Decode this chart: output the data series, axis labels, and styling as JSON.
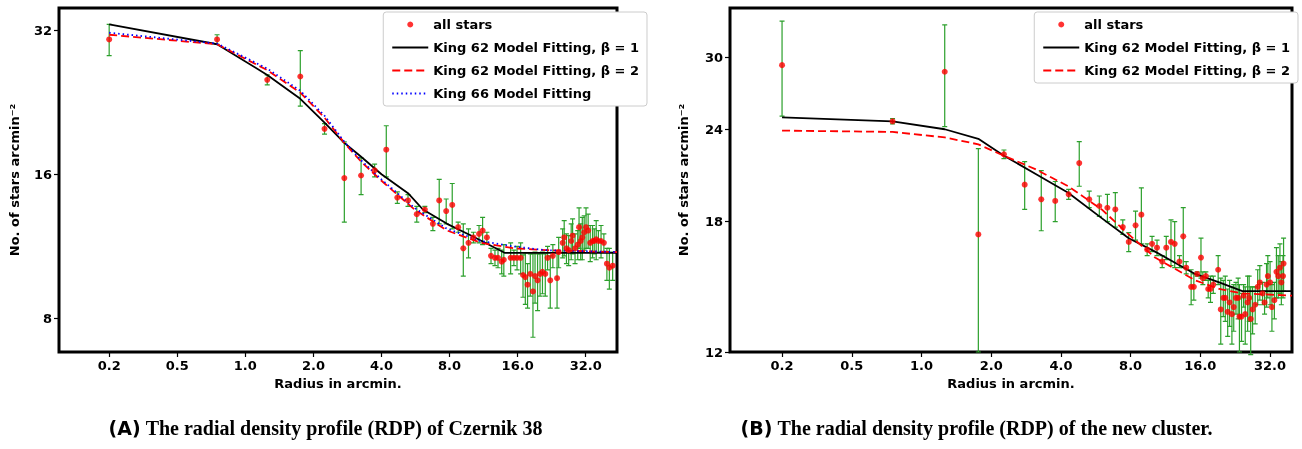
{
  "chart_data": [
    {
      "type": "scatter",
      "title": "(A) The radial density profile (RDP) of Czernik 38",
      "xlabel": "Radius in arcmin.",
      "ylabel": "No. of stars arcmin⁻²",
      "log": "xy",
      "grid": false,
      "legend": "top right",
      "xlim": [
        0.15,
        44
      ],
      "xticks": [
        {
          "value": 0.25,
          "label": "0.2"
        },
        0.5,
        {
          "value": 1,
          "label": "1.0"
        },
        {
          "value": 2,
          "label": "2.0"
        },
        {
          "value": 4,
          "label": "4.0"
        },
        {
          "value": 8,
          "label": "8.0"
        },
        {
          "value": 16,
          "label": "16.0"
        },
        {
          "value": 32,
          "label": "32.0"
        }
      ],
      "ylim": [
        6.8,
        35.6
      ],
      "yticks": [
        8,
        16,
        32
      ],
      "series": [
        {
          "type": "scatter",
          "name": "all stars",
          "color": "#ff0000",
          "marker": "circle",
          "x": [
            0.25,
            0.75,
            1.25,
            1.75,
            2.24,
            2.74,
            3.25,
            3.73,
            4.2,
            4.7,
            5.24,
            5.73,
            6.22,
            6.75,
            7.2,
            7.73,
            8.22,
            8.73,
            9.2,
            9.7,
            10.2,
            10.8,
            11.2,
            11.7,
            12.2,
            12.7,
            13.1,
            13.6,
            13.9,
            14.9,
            15.4,
            15.9,
            16.5,
            16.9,
            17.3,
            17.7,
            18.2,
            18.7,
            19.1,
            19.6,
            20.1,
            20.6,
            21.2,
            21.7,
            22.3,
            22.9,
            23.9,
            24.3,
            25.3,
            25.7,
            26.3,
            26.9,
            27.6,
            28.0,
            28.7,
            29.5,
            29.9,
            30.4,
            30.9,
            31.5,
            32.1,
            32.8,
            33.5,
            34.3,
            34.9,
            35.6,
            36.4,
            37.4,
            38.5,
            39.7,
            40.7,
            42.1
          ],
          "values": [
            30.6,
            30.6,
            25.2,
            25.6,
            19.9,
            15.7,
            15.9,
            16.3,
            18.0,
            14.3,
            14.1,
            13.2,
            13.5,
            12.6,
            14.1,
            13.4,
            13.8,
            12.4,
            11.2,
            11.5,
            11.8,
            12.0,
            12.2,
            11.8,
            10.8,
            10.7,
            10.7,
            10.5,
            10.6,
            10.7,
            10.7,
            10.7,
            10.7,
            9.85,
            9.75,
            9.4,
            9.9,
            9.1,
            9.8,
            9.6,
            9.9,
            10.0,
            9.9,
            10.7,
            9.6,
            10.8,
            9.7,
            11.0,
            11.5,
            11.8,
            11.2,
            11.1,
            11.6,
            11.9,
            11.2,
            11.4,
            12.4,
            11.6,
            11.8,
            12.1,
            12.4,
            12.2,
            11.5,
            11.6,
            11.6,
            11.7,
            11.6,
            11.6,
            11.5,
            10.4,
            10.2,
            10.3
          ],
          "errors": [
            2.3,
            0.7,
            0.6,
            3.4,
            0.5,
            3.0,
            1.4,
            0.5,
            2.2,
            0.4,
            0.4,
            0.5,
            0.2,
            0.4,
            1.5,
            0.8,
            1.5,
            0.3,
            1.4,
            0.8,
            0.3,
            0.5,
            0.8,
            0.3,
            0.4,
            0.4,
            0.5,
            0.6,
            0.8,
            0.8,
            0.4,
            0.6,
            0.8,
            1.0,
            1.2,
            1.0,
            1.0,
            1.8,
            1.2,
            1.3,
            1.0,
            1.0,
            1.0,
            0.6,
            1.2,
            0.6,
            1.3,
            0.8,
            0.8,
            1.0,
            0.8,
            0.8,
            1.0,
            1.0,
            0.8,
            0.8,
            1.2,
            1.0,
            1.2,
            1.0,
            1.2,
            1.0,
            1.0,
            0.9,
            0.7,
            1.1,
            0.6,
            0.9,
            0.5,
            0.8,
            1.0,
            0.7
          ]
        },
        {
          "type": "line",
          "name": "King 62 Model Fitting, β = 1",
          "color": "#000000",
          "line_style": "solid",
          "marker": "none",
          "x": [
            0.25,
            0.75,
            1.25,
            1.75,
            2.24,
            2.74,
            3.25,
            4.0,
            5.24,
            6.1,
            7.8,
            10,
            14,
            44
          ],
          "values": [
            32.9,
            29.9,
            25.8,
            23.0,
            20.5,
            18.6,
            17.4,
            16.0,
            14.6,
            13.5,
            12.6,
            11.9,
            10.96,
            10.96
          ]
        },
        {
          "type": "line",
          "name": "King 62 Model Fitting, β = 2",
          "color": "#ff0000",
          "line_style": "dashed",
          "marker": "none",
          "x": [
            0.25,
            0.75,
            1.25,
            1.75,
            2.24,
            2.74,
            3.25,
            4.0,
            5.6,
            7.8,
            11,
            15.4,
            21.3,
            44
          ],
          "values": [
            31.3,
            29.9,
            26.4,
            23.7,
            21.0,
            18.6,
            17.0,
            15.5,
            13.5,
            12.2,
            11.5,
            11.2,
            11.1,
            11.0
          ]
        },
        {
          "type": "line",
          "name": "King 66 Model Fitting",
          "color": "#0000ff",
          "line_style": "dotted",
          "marker": "none",
          "x": [
            0.25,
            0.75,
            1.25,
            1.75,
            2.24,
            2.74,
            3.25,
            4.0,
            5.6,
            7.8,
            11,
            15.4,
            21.3,
            44
          ],
          "values": [
            31.6,
            30.0,
            26.6,
            23.9,
            21.2,
            18.7,
            17.1,
            15.6,
            13.6,
            12.3,
            11.6,
            11.3,
            11.1,
            11.0
          ]
        }
      ]
    },
    {
      "type": "scatter",
      "title": "(B) The radial density profile (RDP) of the new cluster.",
      "xlabel": "Radius in arcmin.",
      "ylabel": "No. of stars arcmin⁻²",
      "log": "xy",
      "grid": false,
      "legend": "top right",
      "xlim": [
        0.149,
        39.8
      ],
      "xticks": [
        {
          "value": 0.25,
          "label": "0.2"
        },
        0.5,
        {
          "value": 1,
          "label": "1.0"
        },
        {
          "value": 2,
          "label": "2.0"
        },
        {
          "value": 4,
          "label": "4.0"
        },
        {
          "value": 8,
          "label": "8.0"
        },
        {
          "value": 16,
          "label": "16.0"
        },
        {
          "value": 32,
          "label": "32.0"
        }
      ],
      "ylim": [
        12,
        35
      ],
      "yticks": [
        12,
        18,
        24,
        30
      ],
      "series": [
        {
          "type": "scatter",
          "name": "all stars",
          "color": "#ff0000",
          "marker": "circle",
          "x": [
            0.25,
            0.75,
            1.26,
            1.76,
            2.27,
            2.79,
            3.29,
            3.78,
            4.32,
            4.8,
            5.3,
            5.86,
            6.35,
            6.87,
            7.4,
            7.85,
            8.4,
            8.9,
            9.43,
            9.9,
            10.4,
            10.95,
            11.4,
            11.95,
            12.4,
            13.0,
            13.5,
            13.9,
            14.6,
            15.0,
            15.5,
            16.1,
            16.4,
            16.9,
            17.3,
            17.7,
            18.2,
            19.1,
            19.6,
            20.1,
            20.5,
            21.0,
            21.4,
            21.9,
            22.3,
            22.8,
            23.3,
            23.6,
            24.1,
            24.6,
            25.0,
            25.6,
            26.0,
            26.4,
            26.9,
            27.6,
            28.3,
            28.9,
            29.7,
            30.3,
            30.9,
            31.3,
            32.0,
            32.6,
            33.4,
            34.1,
            34.7,
            35.3,
            35.8,
            36.4,
            36.6
          ],
          "values": [
            29.3,
            24.6,
            28.7,
            17.3,
            22.2,
            20.2,
            19.3,
            19.2,
            19.6,
            21.6,
            19.3,
            18.9,
            18.8,
            18.7,
            17.7,
            16.9,
            17.8,
            18.4,
            16.5,
            16.8,
            16.6,
            15.9,
            16.6,
            16.9,
            16.8,
            15.9,
            17.2,
            15.6,
            14.7,
            14.7,
            15.3,
            16.1,
            15.1,
            15.2,
            14.6,
            14.6,
            14.8,
            15.5,
            13.7,
            14.2,
            14.2,
            13.6,
            14.0,
            13.5,
            13.8,
            14.2,
            14.2,
            13.4,
            13.4,
            14.3,
            13.5,
            14.0,
            14.2,
            13.3,
            13.7,
            13.9,
            14.7,
            14.9,
            14.4,
            14.0,
            14.8,
            15.2,
            14.9,
            13.8,
            14.1,
            15.4,
            15.2,
            15.6,
            14.9,
            15.2,
            15.8
          ],
          "errors": [
            4.3,
            0.2,
            4.5,
            5.3,
            0.3,
            1.5,
            1.8,
            1.2,
            0.3,
            1.5,
            0.5,
            0.6,
            0.8,
            1.0,
            0.4,
            0.5,
            0.8,
            1.6,
            0.3,
            0.4,
            0.4,
            0.3,
            0.6,
            1.2,
            1.2,
            0.3,
            1.6,
            0.3,
            0.8,
            0.6,
            0.1,
            1.0,
            0.3,
            0.2,
            0.4,
            0.6,
            0.4,
            0.7,
            1.4,
            0.8,
            1.0,
            1.0,
            1.0,
            1.2,
            1.0,
            0.7,
            0.9,
            1.4,
            1.0,
            0.5,
            1.2,
            1.2,
            1.0,
            1.4,
            1.0,
            0.8,
            0.8,
            0.8,
            0.5,
            0.5,
            1.0,
            1.0,
            1.0,
            1.0,
            0.8,
            1.2,
            1.0,
            1.2,
            1.0,
            1.0,
            1.3
          ]
        },
        {
          "type": "line",
          "name": "King 62 Model Fitting, β = 1",
          "color": "#000000",
          "line_style": "solid",
          "marker": "none",
          "x": [
            0.25,
            0.75,
            1.26,
            1.76,
            2.27,
            3.1,
            4.3,
            6.0,
            7.85,
            10.2,
            15.2,
            19.3,
            24.3,
            39.8
          ],
          "values": [
            24.9,
            24.6,
            24.0,
            23.3,
            22.1,
            20.9,
            19.7,
            18.2,
            17.1,
            16.4,
            15.3,
            14.9,
            14.5,
            14.5
          ]
        },
        {
          "type": "line",
          "name": "King 62 Model Fitting, β = 2",
          "color": "#ff0000",
          "line_style": "dashed",
          "marker": "none",
          "x": [
            0.25,
            0.75,
            1.26,
            1.76,
            2.27,
            3.1,
            4.3,
            6.0,
            7.85,
            10.2,
            15.2,
            19.3,
            24.3,
            39.8
          ],
          "values": [
            23.9,
            23.8,
            23.4,
            22.9,
            22.1,
            21.2,
            20.1,
            18.7,
            17.3,
            16.1,
            15.0,
            14.6,
            14.4,
            14.3
          ]
        }
      ]
    }
  ]
}
